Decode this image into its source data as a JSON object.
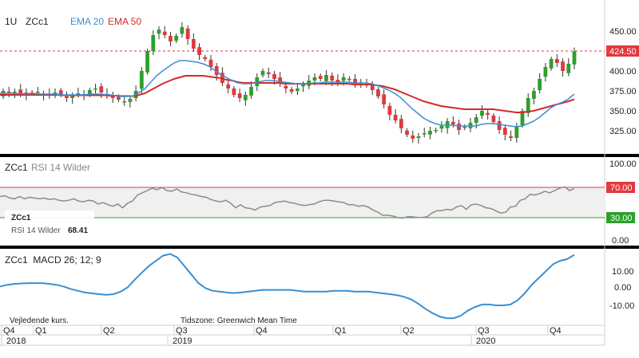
{
  "header": {
    "interval": "1U",
    "symbol": "ZCc1",
    "ema20_label": "EMA 20",
    "ema50_label": "EMA 50"
  },
  "colors": {
    "up": "#2ca02c",
    "down": "#e0393e",
    "ema20": "#3b8fd1",
    "ema50": "#d42a2a",
    "rsi": "#8c8c8c",
    "macd": "#3b8fd1",
    "last_price_bg": "#e0393e",
    "rsi_level_bg": "#e0393e"
  },
  "price_pane": {
    "last_price_label": "424.50",
    "ticks": [
      "450.00",
      "424.50",
      "400.00",
      "375.00",
      "350.00",
      "325.00"
    ]
  },
  "rsi_pane": {
    "title_symbol": "ZCc1",
    "title_indicator": "RSI 14 Wilder",
    "ticks": [
      "100.00",
      "70.00",
      "30.00",
      "0.00"
    ],
    "legend_symbol": "ZCc1",
    "legend_label": "RSI 14 Wilder",
    "legend_value": "68.41"
  },
  "macd_pane": {
    "title": "ZCc1  MACD 26; 12; 9",
    "ticks": [
      "10.00",
      "0.00",
      "-10.00"
    ],
    "footnote_left": "Vejledende kurs.",
    "footnote_right": "Tidszone: Greenwich Mean Time"
  },
  "x_axis": {
    "quarters": [
      "Q4",
      "Q1",
      "Q2",
      "Q3",
      "Q4",
      "Q1",
      "Q2",
      "Q3",
      "Q4"
    ],
    "years": [
      "2018",
      "2019",
      "2020"
    ]
  },
  "chart_data": [
    {
      "type": "candlestick",
      "title": "ZCc1",
      "ylim": [
        300,
        462
      ],
      "candle_closes": [
        375,
        372,
        374,
        371,
        373,
        372,
        374,
        370,
        371,
        373,
        370,
        366,
        369,
        372,
        371,
        376,
        378,
        373,
        369,
        366,
        364,
        362,
        365,
        375,
        400,
        425,
        445,
        452,
        445,
        437,
        444,
        455,
        440,
        428,
        420,
        415,
        405,
        395,
        385,
        378,
        370,
        366,
        370,
        380,
        392,
        400,
        396,
        390,
        384,
        378,
        374,
        378,
        383,
        388,
        392,
        390,
        395,
        388,
        385,
        392,
        390,
        384,
        386,
        383,
        376,
        368,
        358,
        345,
        338,
        328,
        320,
        315,
        318,
        322,
        325,
        326,
        331,
        337,
        333,
        326,
        330,
        335,
        342,
        350,
        345,
        336,
        326,
        320,
        316,
        330,
        350,
        366,
        375,
        390,
        405,
        415,
        410,
        400,
        409,
        424.5
      ],
      "ema20": [
        372,
        372,
        372,
        371.5,
        371.5,
        371.5,
        371.5,
        371,
        371,
        371,
        370.5,
        370,
        370,
        370,
        370,
        370.5,
        371,
        371,
        370.5,
        370,
        369,
        368,
        368,
        369,
        373,
        378,
        386,
        394,
        400,
        405,
        410,
        413,
        413,
        412,
        411,
        409,
        406,
        401,
        396,
        392,
        388,
        385,
        384,
        384,
        385,
        387,
        388,
        388,
        387,
        386,
        385,
        384,
        384,
        384,
        385,
        385,
        386,
        386,
        386,
        386,
        386,
        385,
        385,
        385,
        384,
        382,
        379,
        376,
        372,
        367,
        360,
        353,
        347,
        341,
        337,
        334,
        332,
        332,
        332,
        331,
        331,
        331,
        331,
        333,
        334,
        334,
        333,
        332,
        331,
        330,
        331,
        334,
        337,
        342,
        348,
        354,
        358,
        361,
        365,
        371
      ],
      "ema50": [
        370,
        370,
        370,
        370,
        370,
        370,
        370,
        370,
        370,
        370,
        370,
        369.5,
        369.5,
        369.5,
        369.5,
        369.5,
        369.5,
        369.5,
        369.5,
        369,
        369,
        368.5,
        368.5,
        368.5,
        370,
        372,
        376,
        380,
        384,
        387,
        390,
        392,
        394,
        394,
        394,
        394,
        393,
        392,
        391,
        389,
        388,
        386,
        385,
        385,
        385,
        385,
        385,
        385,
        385,
        384,
        384,
        384,
        384,
        384,
        384,
        384,
        384,
        384,
        384,
        384,
        384,
        383,
        383,
        383,
        383,
        382,
        381,
        379,
        377,
        374,
        371,
        368,
        365,
        362,
        360,
        358,
        356,
        355,
        354,
        353,
        352,
        352,
        352,
        352,
        352,
        352,
        351,
        350,
        349,
        348,
        348,
        349,
        350,
        352,
        354,
        356,
        358,
        360,
        362,
        364.5
      ]
    },
    {
      "type": "line",
      "title": "RSI 14 Wilder",
      "ylim": [
        0,
        100
      ],
      "values": [
        58,
        59,
        56,
        55,
        58,
        55,
        57,
        56,
        55,
        56,
        54,
        55,
        53,
        52,
        53,
        55,
        52,
        51,
        53,
        52,
        48,
        50,
        47,
        45,
        48,
        43,
        49,
        52,
        60,
        63,
        66,
        69,
        67,
        70,
        66,
        65,
        68,
        64,
        63,
        61,
        60,
        58,
        57,
        54,
        52,
        51,
        53,
        49,
        43,
        47,
        43,
        42,
        40,
        44,
        45,
        46,
        50,
        51,
        52,
        50,
        49,
        47,
        46,
        47,
        48,
        51,
        53,
        53,
        52,
        51,
        50,
        47,
        47,
        45,
        46,
        44,
        40,
        37,
        33,
        33,
        32,
        30,
        29,
        31,
        31,
        30,
        30,
        31,
        36,
        39,
        39,
        41,
        40,
        44,
        46,
        41,
        47,
        48,
        46,
        43,
        42,
        39,
        36,
        37,
        44,
        45,
        53,
        55,
        61,
        60,
        62,
        65,
        63,
        66,
        69,
        71,
        66,
        68.41
      ]
    },
    {
      "type": "line",
      "title": "MACD 26; 12; 9",
      "ylim": [
        -19,
        22
      ],
      "values": [
        1,
        2,
        2.5,
        2.8,
        3,
        3,
        3,
        2.5,
        2,
        1,
        -0.5,
        -1.5,
        -2.5,
        -3,
        -3.5,
        -3.8,
        -3.5,
        -2,
        0.5,
        5,
        9,
        13,
        16,
        19,
        20,
        18,
        13,
        8,
        3,
        0,
        -1.5,
        -2,
        -2.5,
        -2.8,
        -2.5,
        -2,
        -1.5,
        -1,
        -1,
        -1,
        -1,
        -1,
        -1.5,
        -2,
        -2,
        -2,
        -2,
        -1.5,
        -1.5,
        -1.5,
        -2,
        -2,
        -2,
        -2.5,
        -3,
        -3.5,
        -4,
        -5,
        -6.5,
        -9,
        -12,
        -14.5,
        -16.5,
        -17.5,
        -17.5,
        -16,
        -13,
        -11,
        -9.5,
        -9.5,
        -10,
        -10,
        -9.5,
        -7,
        -3,
        2,
        6,
        10,
        14,
        16,
        17,
        19.5
      ]
    }
  ]
}
